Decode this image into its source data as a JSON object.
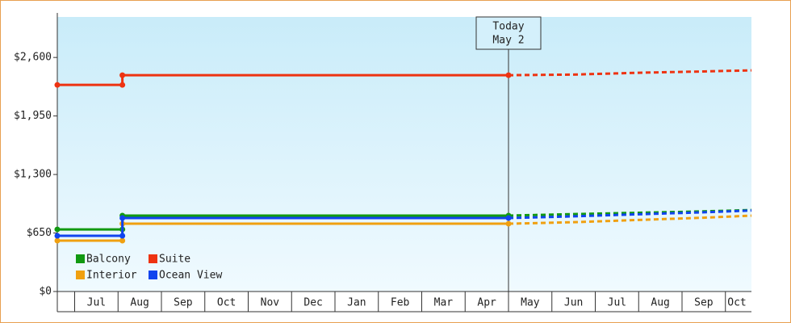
{
  "chart_data": {
    "type": "line",
    "xlim": [
      -0.4,
      15.6
    ],
    "ylim": [
      0,
      3050
    ],
    "yticks": [
      {
        "value": 0,
        "label": "$0"
      },
      {
        "value": 650,
        "label": "$650"
      },
      {
        "value": 1300,
        "label": "$1,300"
      },
      {
        "value": 1950,
        "label": "$1,950"
      },
      {
        "value": 2600,
        "label": "$2,600"
      }
    ],
    "xticks": [
      {
        "value": 0.5,
        "label": "Jul"
      },
      {
        "value": 1.5,
        "label": "Aug"
      },
      {
        "value": 2.5,
        "label": "Sep"
      },
      {
        "value": 3.5,
        "label": "Oct"
      },
      {
        "value": 4.5,
        "label": "Nov"
      },
      {
        "value": 5.5,
        "label": "Dec"
      },
      {
        "value": 6.5,
        "label": "Jan"
      },
      {
        "value": 7.5,
        "label": "Feb"
      },
      {
        "value": 8.5,
        "label": "Mar"
      },
      {
        "value": 9.5,
        "label": "Apr"
      },
      {
        "value": 10.5,
        "label": "May"
      },
      {
        "value": 11.5,
        "label": "Jun"
      },
      {
        "value": 12.5,
        "label": "Jul"
      },
      {
        "value": 13.5,
        "label": "Aug"
      },
      {
        "value": 14.5,
        "label": "Sep"
      },
      {
        "value": 15.5,
        "label": "Oct"
      }
    ],
    "annotation": {
      "x": 10,
      "lines": [
        "Today",
        "May 2"
      ]
    },
    "series": [
      {
        "name": "Balcony",
        "color": "#119911",
        "x": [
          -0.4,
          1.1,
          1.1,
          10
        ],
        "values": [
          690,
          690,
          843,
          843
        ],
        "forecast_x": [
          10,
          11.5,
          13,
          14.5,
          15.6
        ],
        "forecast_values": [
          843,
          860,
          875,
          890,
          905
        ]
      },
      {
        "name": "Suite",
        "color": "#ee3311",
        "x": [
          -0.4,
          1.1,
          1.1,
          10
        ],
        "values": [
          2295,
          2295,
          2403,
          2403
        ],
        "forecast_x": [
          10,
          11.5,
          13,
          14.5,
          15.6
        ],
        "forecast_values": [
          2403,
          2410,
          2430,
          2445,
          2457
        ]
      },
      {
        "name": "Interior",
        "color": "#f0a010",
        "x": [
          -0.4,
          1.1,
          1.1,
          10
        ],
        "values": [
          565,
          565,
          753,
          753
        ],
        "forecast_x": [
          10,
          11.5,
          13,
          14.5,
          15.6
        ],
        "forecast_values": [
          753,
          770,
          795,
          820,
          843
        ]
      },
      {
        "name": "Ocean View",
        "color": "#1144ee",
        "x": [
          -0.4,
          1.1,
          1.1,
          10
        ],
        "values": [
          619,
          619,
          816,
          816
        ],
        "forecast_x": [
          10,
          11.5,
          13,
          14.5,
          15.6
        ],
        "forecast_values": [
          816,
          835,
          858,
          880,
          900
        ]
      }
    ]
  }
}
